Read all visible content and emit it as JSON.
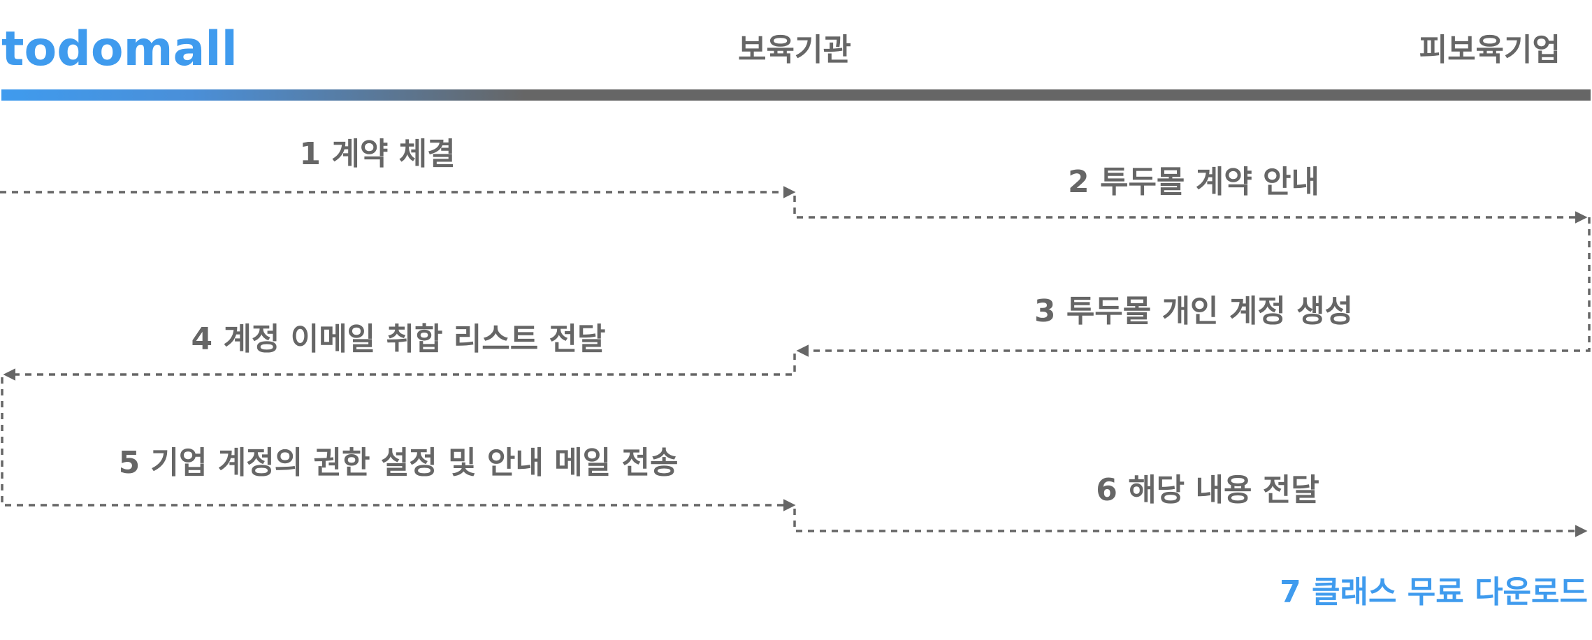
{
  "logo": {
    "text": "todomall",
    "color": "#3f9bee"
  },
  "columns": {
    "provider": "보육기관",
    "receiver": "피보육기업"
  },
  "colors": {
    "text": "#666666",
    "accent": "#3f9bee",
    "line": "#666666"
  },
  "steps": [
    {
      "label": "1 계약 체결",
      "from": "provider",
      "to": "receiver"
    },
    {
      "label": "2 투두몰 계약 안내",
      "from": "provider",
      "to": "receiver"
    },
    {
      "label": "3 투두몰 개인 계정 생성",
      "from": "receiver",
      "to": "provider"
    },
    {
      "label": "4 계정 이메일 취합 리스트 전달",
      "from": "provider",
      "to": "left"
    },
    {
      "label": "5 기업 계정의 권한 설정 및 안내 메일 전송",
      "from": "left",
      "to": "provider"
    },
    {
      "label": "6 해당 내용 전달",
      "from": "provider",
      "to": "receiver"
    },
    {
      "label": "7 클래스 무료 다운로드",
      "from": "receiver",
      "to": "receiver",
      "highlight": true
    }
  ]
}
